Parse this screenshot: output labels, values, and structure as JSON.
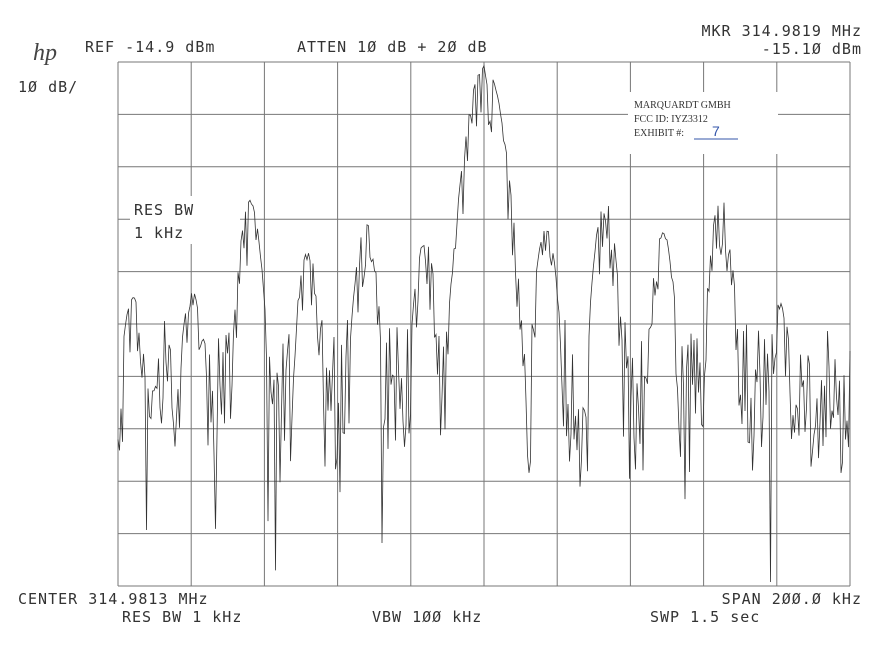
{
  "header": {
    "logo": "hp",
    "ref": "REF -14.9 dBm",
    "atten": "ATTEN 1Ø dB + 2Ø dB",
    "scale": "1Ø dB/",
    "marker_freq": "MKR 314.9819 MHz",
    "marker_level": "-15.1Ø dBm"
  },
  "annotation": {
    "line1": "RES BW",
    "line2": "1 kHz"
  },
  "stamp": {
    "company": "MARQUARDT GMBH",
    "fcc_id": "FCC ID: IYZ3312",
    "exhibit_label": "EXHIBIT #:",
    "exhibit_number": "7"
  },
  "footer": {
    "center": "CENTER 314.9813 MHz",
    "span": "SPAN 2ØØ.Ø kHz",
    "res_bw": "RES BW 1 kHz",
    "vbw": "VBW 1ØØ kHz",
    "sweep": "SWP 1.5  sec"
  }
}
